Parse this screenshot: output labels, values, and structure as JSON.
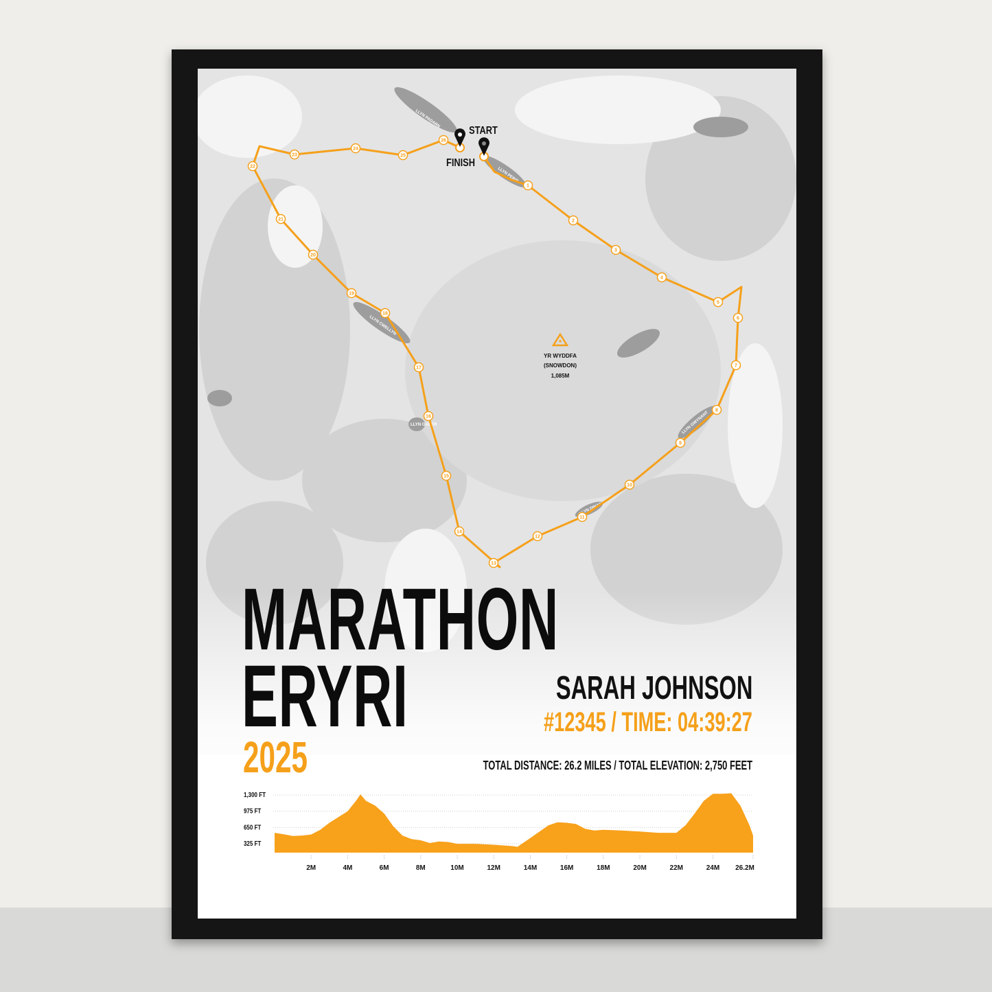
{
  "poster": {
    "title_line1": "MARATHON",
    "title_line2": "ERYRI",
    "year": "2025",
    "runner_name": "SARAH JOHNSON",
    "bib_time": "#12345  /  TIME: 04:39:27",
    "stats": "TOTAL DISTANCE:  26.2 MILES  /  TOTAL ELEVATION:  2,750 FEET"
  },
  "map": {
    "start_label": "START",
    "finish_label": "FINISH",
    "summit": {
      "name": "YR WYDDFA",
      "alt_name": "(SNOWDON)",
      "height": "1,085M",
      "icon": "triangle-summit-icon"
    },
    "lakes": [
      "LLYN PADARN",
      "LLYN PERIS",
      "LLYN CWELLYN",
      "LLYN GADER",
      "LLYN GWYNANT",
      "LLYN DINAS"
    ],
    "mile_markers": [
      "1",
      "2",
      "3",
      "4",
      "5",
      "6",
      "7",
      "8",
      "9",
      "10",
      "11",
      "12",
      "13",
      "14",
      "15",
      "16",
      "17",
      "18",
      "19",
      "20",
      "21",
      "22",
      "23",
      "24",
      "25",
      "26"
    ],
    "route_color": "#f5a01a",
    "pin_icon": "map-pin-icon"
  },
  "chart_data": {
    "type": "area",
    "title": "",
    "xlabel": "",
    "ylabel": "",
    "x_unit": "miles",
    "y_unit": "feet",
    "x_tick_labels": [
      "2M",
      "4M",
      "6M",
      "8M",
      "10M",
      "12M",
      "14M",
      "16M",
      "18M",
      "20M",
      "22M",
      "24M",
      "26.2M"
    ],
    "x_ticks": [
      2,
      4,
      6,
      8,
      10,
      12,
      14,
      16,
      18,
      20,
      22,
      24,
      26.2
    ],
    "y_tick_labels": [
      "1,300 FT",
      "975 FT",
      "650 FT",
      "325 FT"
    ],
    "y_ticks": [
      1300,
      975,
      650,
      325
    ],
    "xlim": [
      0,
      26.2
    ],
    "ylim": [
      110,
      1400
    ],
    "grid": true,
    "color": "#f8a11b",
    "x": [
      0,
      0.5,
      1,
      1.5,
      2,
      2.5,
      3,
      3.5,
      4,
      4.5,
      4.7,
      5,
      5.5,
      6,
      6.5,
      7,
      7.5,
      8,
      8.5,
      9,
      9.5,
      10,
      11,
      12,
      13,
      13.3,
      14,
      15,
      15.5,
      16,
      16.5,
      17,
      17.5,
      18,
      19,
      20,
      21,
      22,
      22.5,
      23,
      23.5,
      24,
      24.5,
      25,
      25.5,
      26,
      26.2
    ],
    "y": [
      530,
      500,
      465,
      475,
      495,
      590,
      730,
      845,
      960,
      1190,
      1300,
      1170,
      1075,
      915,
      660,
      475,
      405,
      380,
      325,
      355,
      345,
      310,
      310,
      290,
      265,
      250,
      425,
      680,
      740,
      730,
      705,
      610,
      575,
      590,
      575,
      555,
      530,
      530,
      680,
      915,
      1170,
      1310,
      1310,
      1320,
      1075,
      680,
      475
    ]
  }
}
